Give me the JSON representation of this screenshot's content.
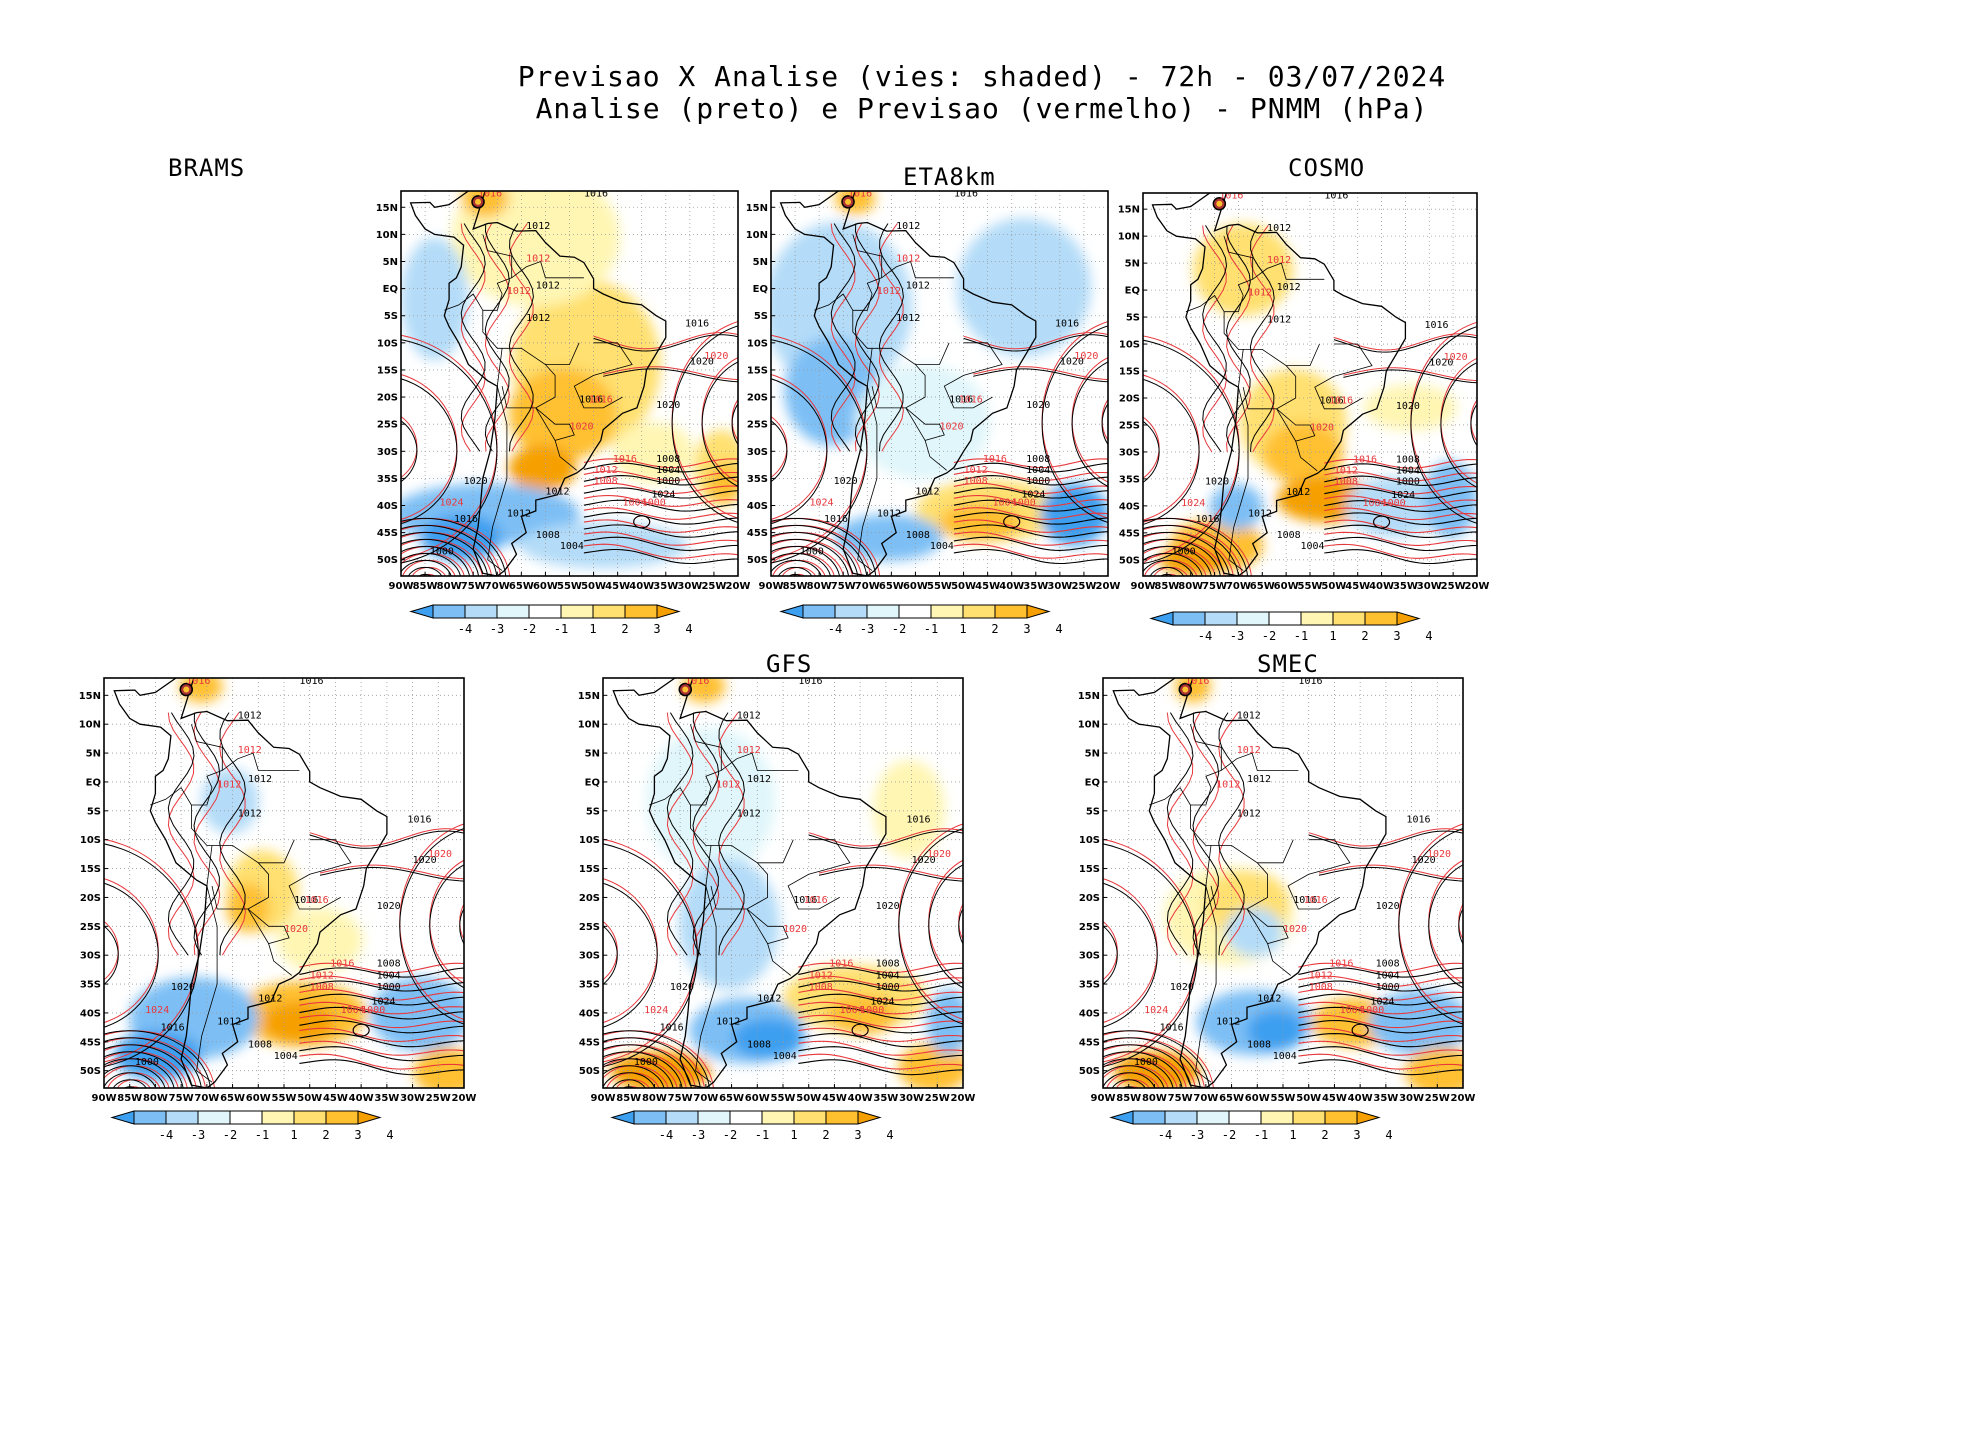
{
  "header": {
    "line1": "Previsao X Analise (vies: shaded) - 72h - 03/07/2024",
    "line2": "Analise (preto) e Previsao (vermelho) - PNMM (hPa)"
  },
  "models": [
    {
      "id": "brams",
      "name": "BRAMS"
    },
    {
      "id": "eta8km",
      "name": "ETA8km"
    },
    {
      "id": "cosmo",
      "name": "COSMO"
    },
    {
      "id": "panel4",
      "name": ""
    },
    {
      "id": "gfs",
      "name": "GFS"
    },
    {
      "id": "smec",
      "name": "SMEC"
    }
  ],
  "axes": {
    "lat_labels": [
      "15N",
      "10N",
      "5N",
      "EQ",
      "5S",
      "10S",
      "15S",
      "20S",
      "25S",
      "30S",
      "35S",
      "40S",
      "45S",
      "50S"
    ],
    "lon_labels": [
      "90W",
      "85W",
      "80W",
      "75W",
      "70W",
      "65W",
      "60W",
      "55W",
      "50W",
      "45W",
      "40W",
      "35W",
      "30W",
      "25W",
      "20W"
    ]
  },
  "colorbar": {
    "labels": [
      "-4",
      "-3",
      "-2",
      "-1",
      "1",
      "2",
      "3",
      "4"
    ],
    "colors": [
      "#3d9ff0",
      "#7dbff5",
      "#b4dcf8",
      "#e0f6fa",
      "#ffffff",
      "#fff6b4",
      "#ffe070",
      "#ffc030",
      "#f5a000"
    ]
  },
  "contour_labels": {
    "analysis": [
      "1016",
      "1012",
      "1012",
      "1012",
      "1016",
      "1020",
      "1020",
      "1016",
      "1012",
      "1008",
      "1004",
      "1000",
      "1024",
      "1020",
      "1016",
      "1012",
      "1008",
      "1004",
      "1000"
    ],
    "forecast": [
      "1016",
      "1012",
      "1012",
      "1016",
      "1020",
      "1020",
      "1016",
      "1012",
      "1008",
      "1004",
      "1000",
      "1024"
    ]
  },
  "colors": {
    "analysis": "#000000",
    "forecast": "#e8383c",
    "coast": "#000000",
    "grid": "#9a9a9a"
  }
}
